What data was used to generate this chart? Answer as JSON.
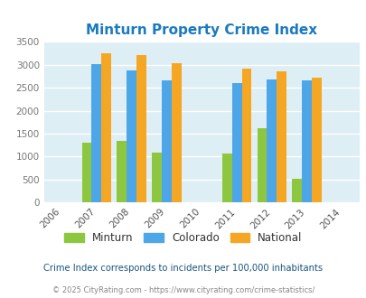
{
  "title": "Minturn Property Crime Index",
  "title_color": "#1a7abf",
  "years": [
    2006,
    2007,
    2008,
    2009,
    2010,
    2011,
    2012,
    2013,
    2014
  ],
  "bar_years": [
    2007,
    2008,
    2009,
    2011,
    2012,
    2013
  ],
  "minturn": [
    1300,
    1350,
    1090,
    1060,
    1620,
    510
  ],
  "colorado": [
    3020,
    2870,
    2660,
    2610,
    2680,
    2660
  ],
  "national": [
    3250,
    3210,
    3040,
    2910,
    2860,
    2720
  ],
  "minturn_color": "#8dc63f",
  "colorado_color": "#4da6e8",
  "national_color": "#f5a623",
  "ylim": [
    0,
    3500
  ],
  "yticks": [
    0,
    500,
    1000,
    1500,
    2000,
    2500,
    3000,
    3500
  ],
  "xlim_min": 2005.5,
  "xlim_max": 2014.5,
  "bg_color": "#ddeef5",
  "grid_color": "#ffffff",
  "legend_labels": [
    "Minturn",
    "Colorado",
    "National"
  ],
  "note": "Crime Index corresponds to incidents per 100,000 inhabitants",
  "copyright": "© 2025 CityRating.com - https://www.cityrating.com/crime-statistics/",
  "note_color": "#1a5580",
  "copyright_color": "#888888",
  "bar_width": 0.28
}
